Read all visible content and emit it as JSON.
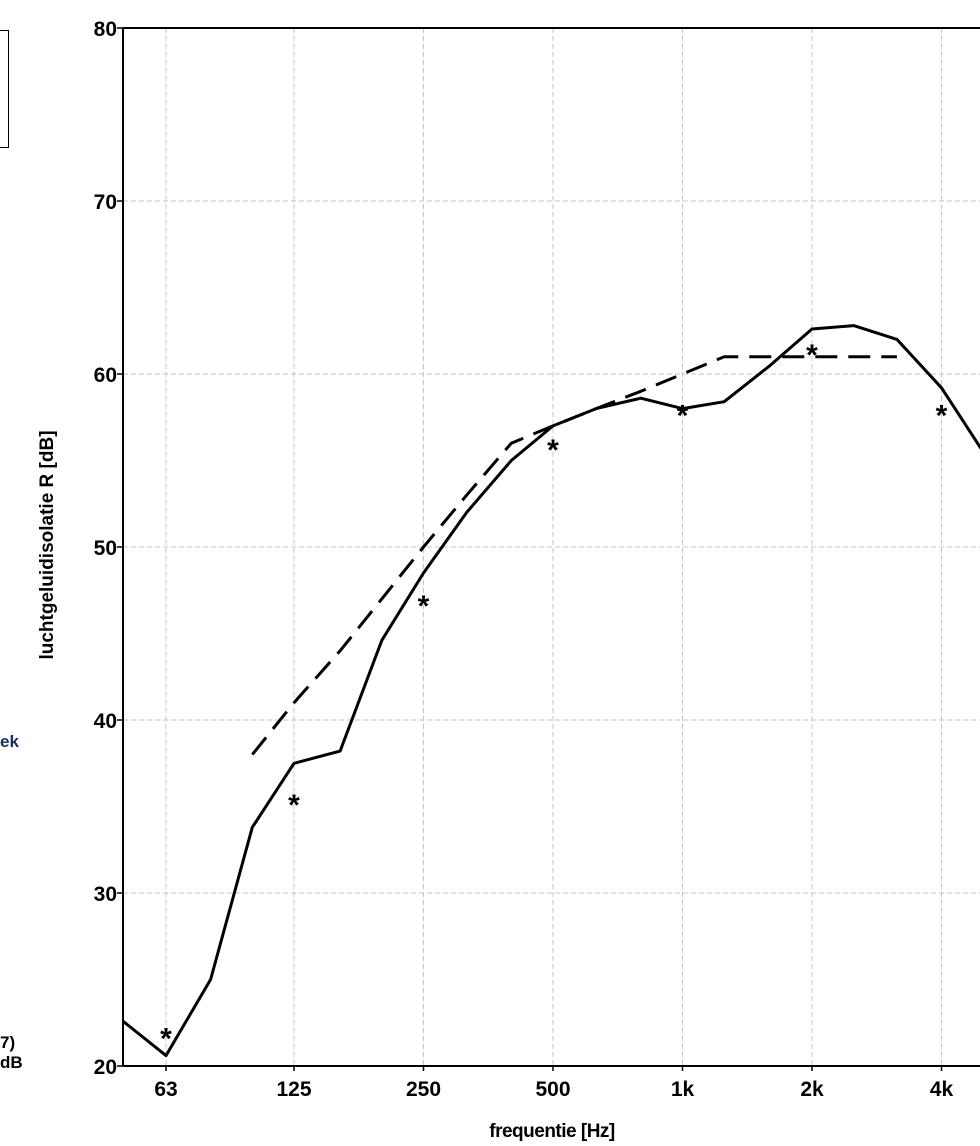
{
  "side_fragments": [
    "ek",
    "7) dB"
  ],
  "chart_data": {
    "type": "line",
    "xlabel": "frequentie [Hz]",
    "ylabel": "luchtgeluidisolatie R [dB]",
    "x_scale": "log",
    "x_ticks": [
      "63",
      "125",
      "250",
      "500",
      "1k",
      "2k",
      "4k"
    ],
    "ylim": [
      20,
      80
    ],
    "y_ticks": [
      20,
      30,
      40,
      50,
      60,
      70,
      80
    ],
    "grid": true,
    "series": [
      {
        "style": "solid",
        "x": [
          50,
          63,
          80,
          100,
          125,
          160,
          200,
          250,
          315,
          400,
          500,
          630,
          800,
          1000,
          1250,
          1600,
          2000,
          2500,
          3150,
          4000,
          5000
        ],
        "y": [
          22.6,
          20.6,
          25,
          33.8,
          37.5,
          38.2,
          44.6,
          48.5,
          52,
          55,
          57,
          58,
          58.6,
          58,
          58.4,
          60.5,
          62.6,
          62.8,
          62,
          59.2,
          55.5
        ]
      },
      {
        "style": "dashed",
        "x": [
          100,
          125,
          160,
          200,
          250,
          315,
          400,
          500,
          630,
          800,
          1000,
          1250,
          1600,
          2000,
          2500,
          3150
        ],
        "y": [
          38,
          41,
          44,
          47,
          50,
          53,
          56,
          57,
          58,
          59,
          60,
          61,
          61,
          61,
          61,
          61
        ]
      },
      {
        "style": "markers",
        "marker": "*",
        "x": [
          63,
          125,
          250,
          500,
          1000,
          2000,
          4000
        ],
        "y": [
          22,
          35.5,
          47,
          56,
          58,
          61.5,
          58
        ]
      }
    ]
  }
}
